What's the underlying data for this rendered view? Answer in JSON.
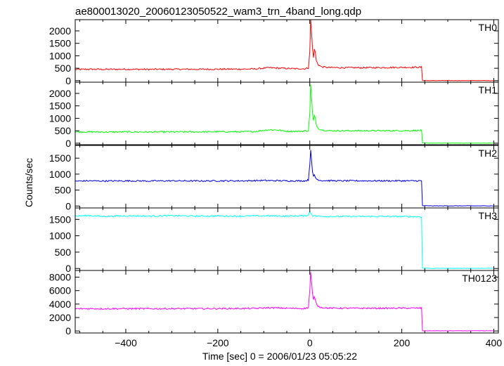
{
  "title": "ae800013020_20060123050522_wam3_trn_4band_long.qdp",
  "ylabel": "Counts/sec",
  "xlabel": "Time [sec] 0 = 2006/01/23 05:05:22",
  "colors": {
    "axis": "#000000",
    "background": "#ffffff"
  },
  "chart_data": {
    "type": "line",
    "x_range": [
      -510,
      410
    ],
    "x_ticks": [
      -400,
      -200,
      0,
      200,
      400
    ],
    "x_tick_labels": [
      "−400",
      "−200",
      "0",
      "200",
      "400"
    ],
    "panels": [
      {
        "name": "TH0",
        "color": "#ff0000",
        "ylim": [
          -60,
          2450
        ],
        "y_ticks": [
          0,
          500,
          1000,
          1500,
          2000
        ],
        "y_tick_labels": [
          "0",
          "500",
          "1000",
          "1500",
          "2000"
        ],
        "series": [
          [
            -510,
            450
          ],
          [
            -480,
            460
          ],
          [
            -450,
            455
          ],
          [
            -400,
            460
          ],
          [
            -350,
            455
          ],
          [
            -300,
            460
          ],
          [
            -250,
            458
          ],
          [
            -200,
            462
          ],
          [
            -150,
            465
          ],
          [
            -120,
            470
          ],
          [
            -90,
            520
          ],
          [
            -60,
            500
          ],
          [
            -30,
            480
          ],
          [
            -10,
            480
          ],
          [
            -3,
            520
          ],
          [
            0,
            1150
          ],
          [
            2,
            2450
          ],
          [
            4,
            1900
          ],
          [
            6,
            1300
          ],
          [
            8,
            950
          ],
          [
            10,
            1250
          ],
          [
            12,
            1150
          ],
          [
            14,
            800
          ],
          [
            18,
            650
          ],
          [
            25,
            560
          ],
          [
            40,
            530
          ],
          [
            80,
            520
          ],
          [
            150,
            525
          ],
          [
            200,
            535
          ],
          [
            240,
            540
          ],
          [
            243,
            540
          ],
          [
            245,
            10
          ],
          [
            260,
            5
          ],
          [
            300,
            5
          ],
          [
            350,
            5
          ],
          [
            400,
            5
          ]
        ]
      },
      {
        "name": "TH1",
        "color": "#00ff00",
        "ylim": [
          -60,
          2450
        ],
        "y_ticks": [
          0,
          500,
          1000,
          1500,
          2000
        ],
        "y_tick_labels": [
          "0",
          "500",
          "1000",
          "1500",
          "2000"
        ],
        "series": [
          [
            -510,
            450
          ],
          [
            -480,
            455
          ],
          [
            -450,
            450
          ],
          [
            -400,
            455
          ],
          [
            -350,
            450
          ],
          [
            -300,
            455
          ],
          [
            -250,
            455
          ],
          [
            -200,
            460
          ],
          [
            -150,
            460
          ],
          [
            -120,
            470
          ],
          [
            -90,
            540
          ],
          [
            -70,
            530
          ],
          [
            -50,
            480
          ],
          [
            -20,
            480
          ],
          [
            -3,
            500
          ],
          [
            0,
            1200
          ],
          [
            2,
            2350
          ],
          [
            4,
            1800
          ],
          [
            6,
            1200
          ],
          [
            8,
            900
          ],
          [
            10,
            1100
          ],
          [
            12,
            1000
          ],
          [
            14,
            750
          ],
          [
            18,
            600
          ],
          [
            25,
            540
          ],
          [
            40,
            500
          ],
          [
            80,
            500
          ],
          [
            150,
            500
          ],
          [
            200,
            505
          ],
          [
            240,
            510
          ],
          [
            243,
            510
          ],
          [
            245,
            10
          ],
          [
            260,
            5
          ],
          [
            300,
            5
          ],
          [
            350,
            5
          ],
          [
            400,
            5
          ]
        ]
      },
      {
        "name": "TH2",
        "color": "#0000e6",
        "ylim": [
          -60,
          1900
        ],
        "y_ticks": [
          0,
          500,
          1000,
          1500
        ],
        "y_tick_labels": [
          "0",
          "500",
          "1000",
          "1500"
        ],
        "series": [
          [
            -510,
            780
          ],
          [
            -480,
            790
          ],
          [
            -450,
            785
          ],
          [
            -400,
            790
          ],
          [
            -350,
            785
          ],
          [
            -300,
            790
          ],
          [
            -250,
            785
          ],
          [
            -200,
            790
          ],
          [
            -150,
            790
          ],
          [
            -100,
            800
          ],
          [
            -50,
            790
          ],
          [
            -10,
            790
          ],
          [
            -3,
            820
          ],
          [
            0,
            1300
          ],
          [
            2,
            1780
          ],
          [
            4,
            1400
          ],
          [
            6,
            1050
          ],
          [
            8,
            930
          ],
          [
            10,
            980
          ],
          [
            12,
            900
          ],
          [
            15,
            840
          ],
          [
            25,
            800
          ],
          [
            60,
            790
          ],
          [
            120,
            790
          ],
          [
            180,
            790
          ],
          [
            240,
            790
          ],
          [
            243,
            785
          ],
          [
            245,
            10
          ],
          [
            260,
            5
          ],
          [
            300,
            5
          ],
          [
            350,
            5
          ],
          [
            400,
            5
          ]
        ]
      },
      {
        "name": "TH3",
        "color": "#00ffff",
        "ylim": [
          -60,
          1850
        ],
        "y_ticks": [
          0,
          500,
          1000,
          1500
        ],
        "y_tick_labels": [
          "0",
          "500",
          "1000",
          "1500"
        ],
        "series": [
          [
            -510,
            1600
          ],
          [
            -480,
            1620
          ],
          [
            -450,
            1590
          ],
          [
            -400,
            1610
          ],
          [
            -350,
            1600
          ],
          [
            -300,
            1615
          ],
          [
            -250,
            1600
          ],
          [
            -200,
            1605
          ],
          [
            -150,
            1600
          ],
          [
            -100,
            1610
          ],
          [
            -50,
            1600
          ],
          [
            -10,
            1610
          ],
          [
            -3,
            1640
          ],
          [
            0,
            1720
          ],
          [
            3,
            1680
          ],
          [
            6,
            1620
          ],
          [
            15,
            1600
          ],
          [
            40,
            1590
          ],
          [
            100,
            1590
          ],
          [
            160,
            1590
          ],
          [
            220,
            1585
          ],
          [
            243,
            1580
          ],
          [
            245,
            10
          ],
          [
            260,
            5
          ],
          [
            300,
            5
          ],
          [
            350,
            5
          ],
          [
            400,
            5
          ]
        ]
      },
      {
        "name": "TH0123",
        "color": "#ff00ff",
        "ylim": [
          -300,
          9000
        ],
        "y_ticks": [
          0,
          2000,
          4000,
          6000,
          8000
        ],
        "y_tick_labels": [
          "0",
          "2000",
          "4000",
          "6000",
          "8000"
        ],
        "series": [
          [
            -510,
            3300
          ],
          [
            -480,
            3320
          ],
          [
            -450,
            3310
          ],
          [
            -400,
            3320
          ],
          [
            -350,
            3310
          ],
          [
            -300,
            3320
          ],
          [
            -250,
            3320
          ],
          [
            -200,
            3330
          ],
          [
            -150,
            3340
          ],
          [
            -120,
            3350
          ],
          [
            -90,
            3450
          ],
          [
            -60,
            3400
          ],
          [
            -30,
            3350
          ],
          [
            -10,
            3360
          ],
          [
            -3,
            3500
          ],
          [
            0,
            6000
          ],
          [
            2,
            8700
          ],
          [
            4,
            7200
          ],
          [
            6,
            5500
          ],
          [
            8,
            4600
          ],
          [
            10,
            5100
          ],
          [
            12,
            4700
          ],
          [
            14,
            4100
          ],
          [
            18,
            3700
          ],
          [
            25,
            3500
          ],
          [
            40,
            3400
          ],
          [
            80,
            3380
          ],
          [
            150,
            3380
          ],
          [
            200,
            3390
          ],
          [
            240,
            3400
          ],
          [
            243,
            3400
          ],
          [
            245,
            30
          ],
          [
            260,
            20
          ],
          [
            300,
            20
          ],
          [
            350,
            20
          ],
          [
            400,
            20
          ]
        ]
      }
    ]
  }
}
